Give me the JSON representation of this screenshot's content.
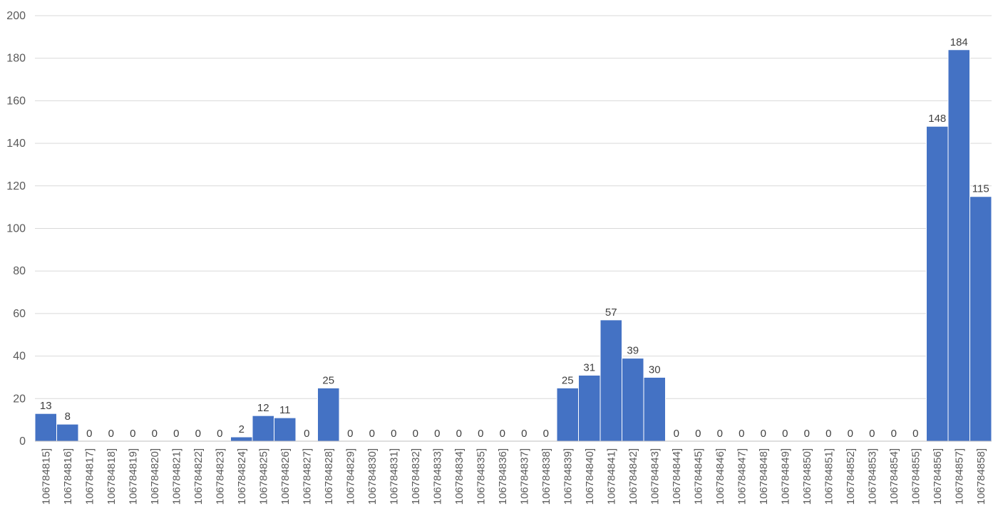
{
  "chart_data": {
    "type": "bar",
    "categories": [
      "106784815]",
      "106784816]",
      "106784817]",
      "106784818]",
      "106784819]",
      "106784820]",
      "106784821]",
      "106784822]",
      "106784823]",
      "106784824]",
      "106784825]",
      "106784826]",
      "106784827]",
      "106784828]",
      "106784829]",
      "106784830]",
      "106784831]",
      "106784832]",
      "106784833]",
      "106784834]",
      "106784835]",
      "106784836]",
      "106784837]",
      "106784838]",
      "106784839]",
      "106784840]",
      "106784841]",
      "106784842]",
      "106784843]",
      "106784844]",
      "106784845]",
      "106784846]",
      "106784847]",
      "106784848]",
      "106784849]",
      "106784850]",
      "106784851]",
      "106784852]",
      "106784853]",
      "106784854]",
      "106784855]",
      "106784856]",
      "106784857]",
      "106784858]"
    ],
    "values": [
      13,
      8,
      0,
      0,
      0,
      0,
      0,
      0,
      0,
      2,
      12,
      11,
      0,
      25,
      0,
      0,
      0,
      0,
      0,
      0,
      0,
      0,
      0,
      0,
      25,
      31,
      57,
      39,
      30,
      0,
      0,
      0,
      0,
      0,
      0,
      0,
      0,
      0,
      0,
      0,
      0,
      148,
      184,
      115
    ],
    "title": "",
    "xlabel": "",
    "ylabel": "",
    "ylim": [
      0,
      200
    ],
    "yticks": [
      0,
      20,
      40,
      60,
      80,
      100,
      120,
      140,
      160,
      180,
      200
    ],
    "grid": true,
    "data_labels": true,
    "bar_color": "#4472C4"
  }
}
